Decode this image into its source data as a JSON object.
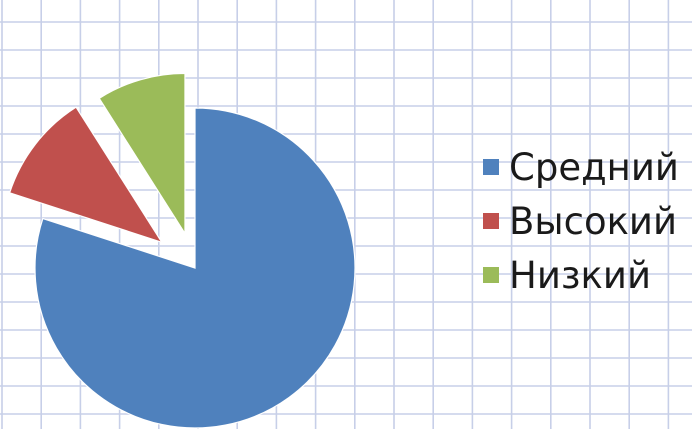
{
  "chart_data": {
    "type": "pie",
    "exploded": true,
    "legend_position": "right",
    "slices": [
      {
        "label": "Средний",
        "value": 80,
        "color": "#4f81bd"
      },
      {
        "label": "Высокий",
        "value": 11,
        "color": "#c0504d"
      },
      {
        "label": "Низкий",
        "value": 9,
        "color": "#9bbb59"
      }
    ]
  },
  "background": {
    "type": "graph-paper",
    "paper_color": "#ffffff",
    "line_color": "#c7cfe8"
  }
}
